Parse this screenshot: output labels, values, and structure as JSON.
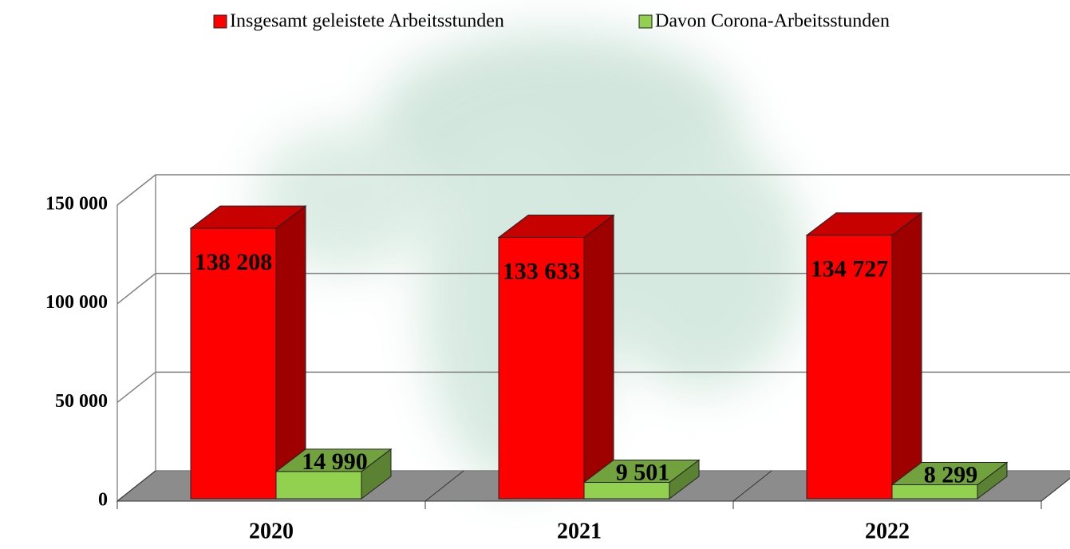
{
  "chart_data": {
    "type": "bar3d",
    "categories": [
      "2020",
      "2021",
      "2022"
    ],
    "series": [
      {
        "name": "Insgesamt geleistete Arbeitsstunden",
        "color": "#ff0000",
        "values": [
          138208,
          133633,
          134727
        ],
        "value_labels": [
          "138 208",
          "133 633",
          "134 727"
        ]
      },
      {
        "name": "Davon Corona-Arbeitsstunden",
        "color": "#92d050",
        "values": [
          14990,
          9501,
          8299
        ],
        "value_labels": [
          "14 990",
          "9 501",
          "8 299"
        ]
      }
    ],
    "ylim": [
      0,
      150000
    ],
    "yticks": [
      0,
      {
        "value": 50000,
        "label": "50 000"
      },
      {
        "value": 100000,
        "label": "100 000"
      },
      {
        "value": 150000,
        "label": "150 000"
      }
    ],
    "grid": true,
    "legend": "top"
  }
}
